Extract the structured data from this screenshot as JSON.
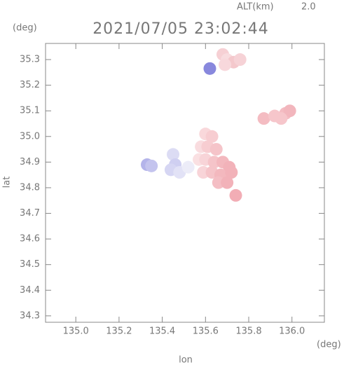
{
  "chart_data": {
    "type": "scatter",
    "title": "2021/07/05 23:02:44",
    "altitude_label": "ALT(km)",
    "altitude": "2.0",
    "y_unit": "(deg)",
    "x_unit": "(deg)",
    "ylabel": "lat",
    "xlabel": "lon",
    "xlim": [
      134.86,
      136.15
    ],
    "ylim": [
      34.275,
      35.363
    ],
    "xticks": [
      {
        "value": 135,
        "label": "135.0"
      },
      135.2,
      135.4,
      135.6,
      135.8,
      {
        "value": 136,
        "label": "136.0"
      }
    ],
    "yticks": [
      34.3,
      34.4,
      34.5,
      34.6,
      34.7,
      34.8,
      34.9,
      {
        "value": 35,
        "label": "35.0"
      },
      35.1,
      35.2,
      35.3
    ],
    "x": [
      135.68,
      135.7,
      135.73,
      135.76,
      135.69,
      135.62,
      135.87,
      135.92,
      135.97,
      135.99,
      135.95,
      135.6,
      135.63,
      135.58,
      135.61,
      135.65,
      135.57,
      135.6,
      135.64,
      135.68,
      135.71,
      135.59,
      135.63,
      135.67,
      135.72,
      135.66,
      135.7,
      135.74,
      135.33,
      135.35,
      135.45,
      135.46,
      135.44,
      135.48,
      135.52
    ],
    "y": [
      35.32,
      35.3,
      35.29,
      35.3,
      35.28,
      35.265,
      35.07,
      35.08,
      35.09,
      35.1,
      35.07,
      35.01,
      35.0,
      34.96,
      34.96,
      34.95,
      34.91,
      34.91,
      34.9,
      34.9,
      34.88,
      34.86,
      34.86,
      34.85,
      34.86,
      34.82,
      34.82,
      34.77,
      34.89,
      34.885,
      34.93,
      34.89,
      34.87,
      34.86,
      34.88
    ],
    "colors": [
      "#f6d0d4",
      "#f8dcdf",
      "#f4c8cc",
      "#f6d2d6",
      "#f8d8dc",
      "#8888dd",
      "#f4bcc2",
      "#f6c6cb",
      "#f4bcc2",
      "#f2b6bd",
      "#f6c6cb",
      "#f9d8db",
      "#f7cdd1",
      "#f9dcdf",
      "#f7cdd1",
      "#f5c4c9",
      "#fae0e2",
      "#f8d4d8",
      "#f5c4c9",
      "#f3b8be",
      "#f2b2b9",
      "#f8d4d8",
      "#f5c4c9",
      "#f3b8be",
      "#f2b2b9",
      "#f4bec4",
      "#f2b2b9",
      "#f2adb5",
      "#b4b4ea",
      "#c4c4ee",
      "#dcdcf4",
      "#cfcff1",
      "#d6d6f3",
      "#e2e2f6",
      "#ececf8"
    ]
  }
}
